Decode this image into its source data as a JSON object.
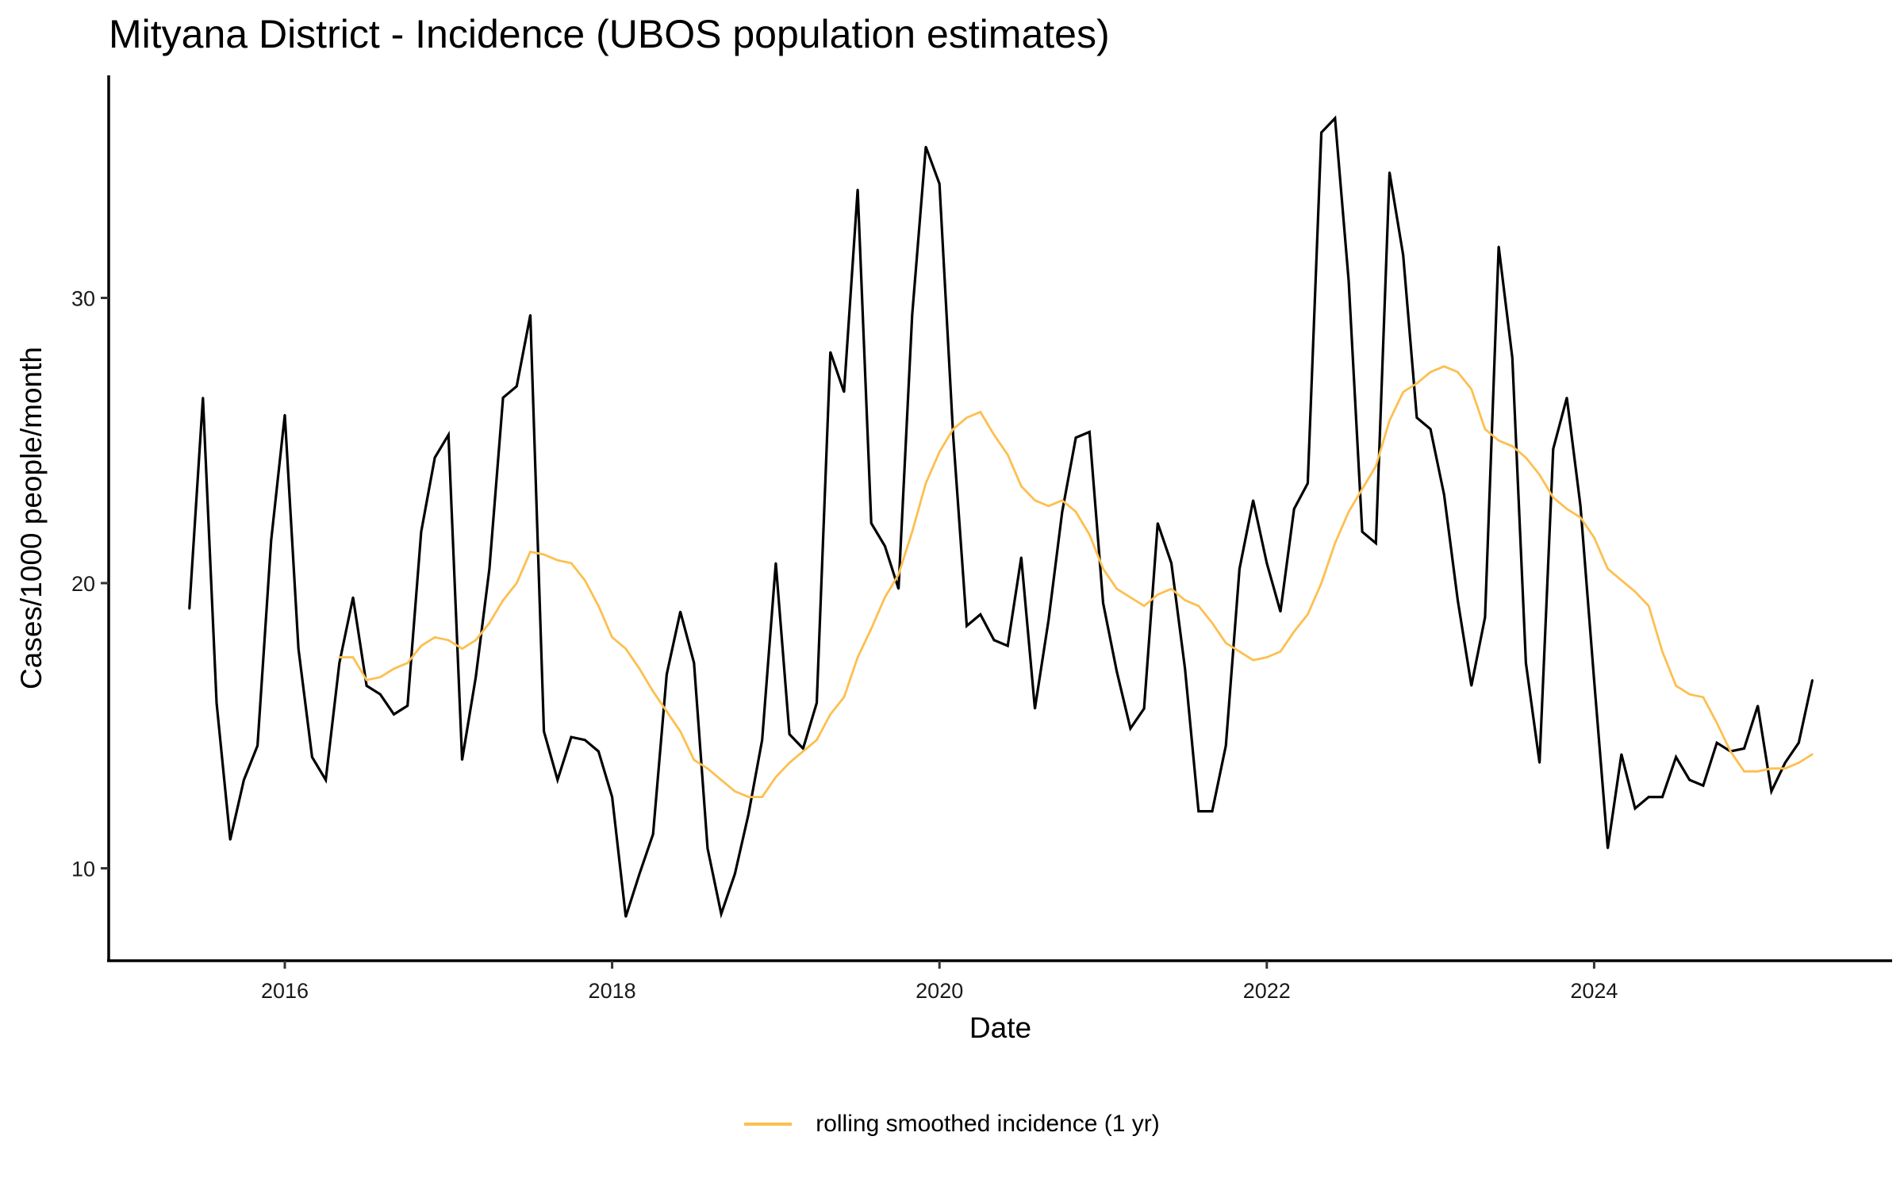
{
  "chart_data": {
    "type": "line",
    "title": "Mityana District - Incidence (UBOS population estimates)",
    "xlabel": "Date",
    "ylabel": "Cases/1000 people/month",
    "x_ticks": [
      "2016",
      "2018",
      "2020",
      "2022",
      "2024"
    ],
    "y_ticks": [
      10,
      20,
      30
    ],
    "xlim": [
      "2015-01",
      "2025-09"
    ],
    "ylim": [
      6.8,
      37.9
    ],
    "grid": false,
    "legend_position": "bottom",
    "series": [
      {
        "name": "incidence",
        "color": "#000000",
        "in_legend": false,
        "start": "2015-06",
        "frequency": "monthly",
        "values": [
          19.1,
          26.5,
          15.8,
          11.0,
          13.1,
          14.3,
          21.5,
          25.9,
          17.7,
          13.9,
          13.1,
          17.2,
          19.5,
          16.4,
          16.1,
          15.4,
          15.7,
          21.8,
          24.4,
          25.2,
          13.8,
          16.7,
          20.5,
          26.5,
          26.9,
          29.4,
          14.8,
          13.1,
          14.6,
          14.5,
          14.1,
          12.5,
          8.3,
          9.8,
          11.2,
          16.8,
          19.0,
          17.2,
          10.7,
          8.4,
          9.8,
          11.9,
          14.5,
          20.7,
          14.7,
          14.2,
          15.8,
          28.1,
          26.7,
          33.8,
          22.1,
          21.3,
          19.8,
          29.4,
          35.3,
          34.0,
          25.2,
          18.5,
          18.9,
          18.0,
          17.8,
          20.9,
          15.6,
          18.7,
          22.5,
          25.1,
          25.3,
          19.3,
          16.9,
          14.9,
          15.6,
          22.1,
          20.7,
          17.0,
          12.0,
          12.0,
          14.3,
          20.5,
          22.9,
          20.7,
          19.0,
          22.6,
          23.5,
          35.8,
          36.3,
          30.6,
          21.8,
          21.4,
          34.4,
          31.5,
          25.8,
          25.4,
          23.1,
          19.4,
          16.4,
          18.8,
          31.8,
          27.9,
          17.2,
          13.7,
          24.7,
          26.5,
          22.7,
          16.6,
          10.7,
          14.0,
          12.1,
          12.5,
          12.5,
          13.9,
          13.1,
          12.9,
          14.4,
          14.1,
          14.2,
          15.7,
          12.7,
          13.7,
          14.4,
          16.6
        ]
      },
      {
        "name": "rolling smoothed incidence (1 yr)",
        "color": "#FDBF4F",
        "in_legend": true,
        "start": "2016-05",
        "frequency": "monthly",
        "values": [
          17.4,
          17.4,
          16.6,
          16.7,
          17.0,
          17.2,
          17.8,
          18.1,
          18.0,
          17.7,
          18.0,
          18.6,
          19.4,
          20.0,
          21.1,
          21.0,
          20.8,
          20.7,
          20.1,
          19.2,
          18.1,
          17.7,
          17.0,
          16.2,
          15.5,
          14.8,
          13.8,
          13.5,
          13.1,
          12.7,
          12.5,
          12.5,
          13.2,
          13.7,
          14.1,
          14.5,
          15.4,
          16.0,
          17.4,
          18.4,
          19.5,
          20.3,
          21.8,
          23.5,
          24.6,
          25.4,
          25.8,
          26.0,
          25.2,
          24.5,
          23.4,
          22.9,
          22.7,
          22.9,
          22.5,
          21.7,
          20.5,
          19.8,
          19.5,
          19.2,
          19.6,
          19.8,
          19.4,
          19.2,
          18.6,
          17.9,
          17.6,
          17.3,
          17.4,
          17.6,
          18.3,
          18.9,
          20.0,
          21.4,
          22.5,
          23.3,
          24.1,
          25.7,
          26.7,
          27.0,
          27.4,
          27.6,
          27.4,
          26.8,
          25.4,
          25.0,
          24.8,
          24.4,
          23.8,
          23.0,
          22.6,
          22.3,
          21.6,
          20.5,
          20.1,
          19.7,
          19.2,
          17.6,
          16.4,
          16.1,
          16.0,
          15.1,
          14.1,
          13.4,
          13.4,
          13.5,
          13.5,
          13.7,
          14.0
        ]
      }
    ]
  }
}
